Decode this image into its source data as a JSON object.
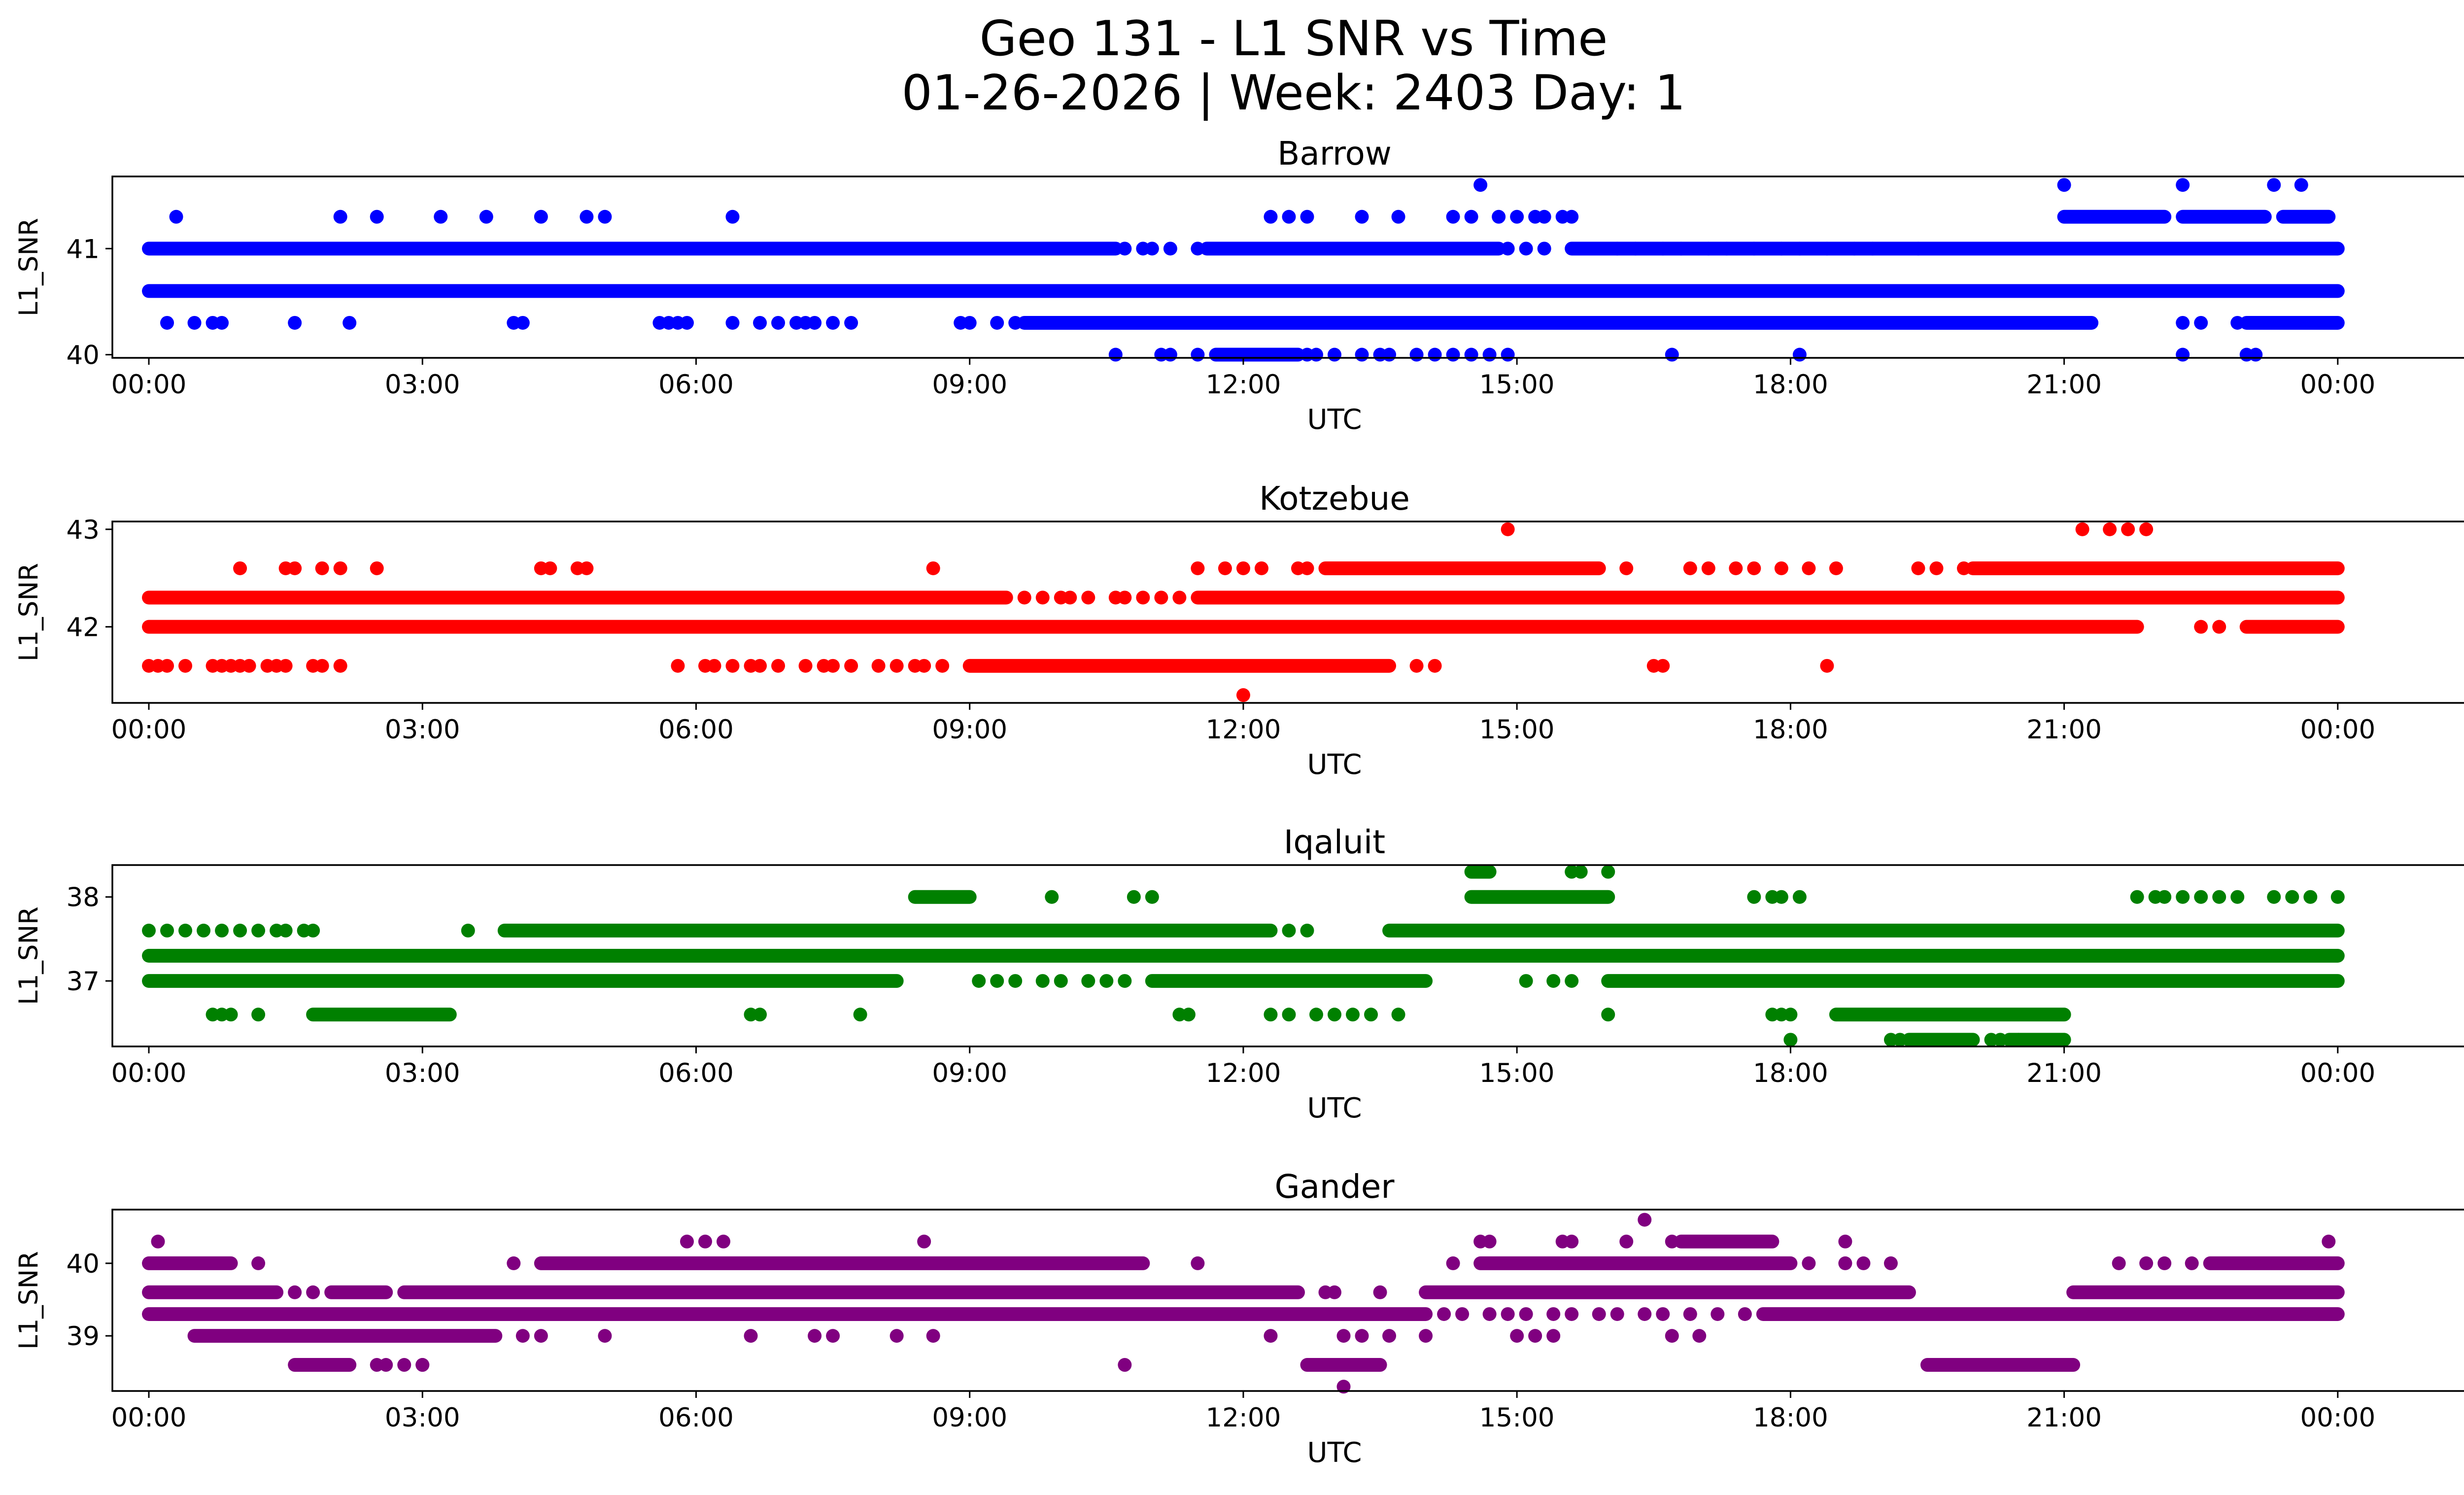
{
  "figure": {
    "title_line1": "Geo 131 - L1 SNR vs Time",
    "title_line2": "01-26-2026 | Week: 2403 Day: 1"
  },
  "chart_data": [
    {
      "type": "scatter",
      "title": "Barrow",
      "xlabel": "UTC",
      "ylabel": "L1_SNR",
      "color": "#0000ff",
      "xlim": [
        -0.4,
        26.4
      ],
      "ylim": [
        39.97,
        41.68
      ],
      "xticks": [
        "00:00",
        "03:00",
        "06:00",
        "09:00",
        "12:00",
        "15:00",
        "18:00",
        "21:00",
        "00:00"
      ],
      "yticks": [
        40,
        41
      ],
      "series": [
        {
          "value": 41.0,
          "segments": [
            [
              0.0,
              10.6
            ],
            [
              11.6,
              14.8
            ],
            [
              15.6,
              24.0
            ]
          ],
          "points": [
            10.7,
            10.9,
            11.0,
            11.2,
            11.5,
            14.9,
            15.1,
            15.3,
            16.1,
            16.3,
            16.6,
            16.8,
            17.1,
            17.3,
            17.6,
            17.9,
            18.1,
            18.4,
            18.7,
            18.9,
            19.4
          ]
        },
        {
          "value": 40.6,
          "segments": [
            [
              0.0,
              24.0
            ]
          ],
          "points": []
        },
        {
          "value": 40.3,
          "segments": [
            [
              9.6,
              21.3
            ],
            [
              23.0,
              24.0
            ]
          ],
          "points": [
            0.2,
            0.5,
            0.7,
            0.8,
            1.6,
            2.2,
            4.0,
            4.1,
            5.6,
            5.7,
            5.8,
            5.9,
            6.4,
            6.7,
            6.9,
            7.1,
            7.2,
            7.3,
            7.5,
            7.7,
            8.9,
            9.0,
            9.3,
            9.5,
            22.3,
            22.5,
            22.9
          ]
        },
        {
          "value": 41.3,
          "segments": [
            [
              21.0,
              22.1
            ],
            [
              22.3,
              23.2
            ],
            [
              23.4,
              23.9
            ]
          ],
          "points": [
            0.3,
            2.1,
            2.5,
            3.2,
            3.7,
            4.3,
            4.8,
            5.0,
            6.4,
            12.3,
            12.5,
            12.7,
            13.3,
            13.7,
            14.3,
            14.5,
            14.8,
            15.0,
            15.2,
            15.3,
            15.5,
            15.6
          ]
        },
        {
          "value": 40.0,
          "segments": [
            [
              11.7,
              12.6
            ]
          ],
          "points": [
            10.6,
            11.1,
            11.2,
            11.5,
            12.7,
            12.8,
            13.0,
            13.3,
            13.5,
            13.6,
            13.9,
            14.1,
            14.3,
            14.5,
            14.7,
            14.9,
            16.7,
            18.1,
            22.3,
            23.0,
            23.1
          ]
        },
        {
          "value": 41.6,
          "segments": [],
          "points": [
            14.6,
            21.0,
            22.3,
            23.3,
            23.6
          ]
        }
      ]
    },
    {
      "type": "scatter",
      "title": "Kotzebue",
      "xlabel": "UTC",
      "ylabel": "L1_SNR",
      "color": "#ff0000",
      "xlim": [
        -0.4,
        26.4
      ],
      "ylim": [
        41.22,
        43.08
      ],
      "xticks": [
        "00:00",
        "03:00",
        "06:00",
        "09:00",
        "12:00",
        "15:00",
        "18:00",
        "21:00",
        "00:00"
      ],
      "yticks": [
        42,
        43
      ],
      "series": [
        {
          "value": 42.0,
          "segments": [
            [
              0.0,
              21.8
            ],
            [
              23.0,
              24.0
            ]
          ],
          "points": [
            22.5,
            22.7
          ]
        },
        {
          "value": 42.3,
          "segments": [
            [
              0.0,
              9.4
            ],
            [
              11.5,
              24.0
            ]
          ],
          "points": [
            9.6,
            9.8,
            10.0,
            10.1,
            10.3,
            10.6,
            10.7,
            10.9,
            11.1,
            11.3
          ]
        },
        {
          "value": 41.6,
          "segments": [
            [
              9.0,
              13.6
            ]
          ],
          "points": [
            0.0,
            0.1,
            0.2,
            0.4,
            0.7,
            0.8,
            0.9,
            1.0,
            1.1,
            1.3,
            1.4,
            1.5,
            1.8,
            1.9,
            2.1,
            5.8,
            6.1,
            6.2,
            6.4,
            6.6,
            6.7,
            6.9,
            7.2,
            7.4,
            7.5,
            7.7,
            8.0,
            8.2,
            8.4,
            8.5,
            8.7,
            13.9,
            14.1,
            16.5,
            16.6,
            18.4
          ]
        },
        {
          "value": 42.6,
          "segments": [
            [
              12.9,
              15.9
            ],
            [
              20.0,
              24.0
            ]
          ],
          "points": [
            1.0,
            1.5,
            1.6,
            1.9,
            2.1,
            2.5,
            4.3,
            4.4,
            4.7,
            4.8,
            8.6,
            11.5,
            11.8,
            12.0,
            12.2,
            12.6,
            12.7,
            16.2,
            16.9,
            17.1,
            17.4,
            17.6,
            17.9,
            18.2,
            18.5,
            19.4,
            19.6,
            19.9
          ]
        },
        {
          "value": 43.0,
          "segments": [],
          "points": [
            14.9,
            21.2,
            21.5,
            21.7,
            21.9
          ]
        },
        {
          "value": 41.3,
          "segments": [],
          "points": [
            12.0
          ]
        }
      ]
    },
    {
      "type": "scatter",
      "title": "Iqaluit",
      "xlabel": "UTC",
      "ylabel": "L1_SNR",
      "color": "#008000",
      "xlim": [
        -0.4,
        26.4
      ],
      "ylim": [
        36.22,
        38.38
      ],
      "xticks": [
        "00:00",
        "03:00",
        "06:00",
        "09:00",
        "12:00",
        "15:00",
        "18:00",
        "21:00",
        "00:00"
      ],
      "yticks": [
        37,
        38
      ],
      "series": [
        {
          "value": 37.3,
          "segments": [
            [
              0.0,
              24.0
            ]
          ],
          "points": []
        },
        {
          "value": 37.6,
          "segments": [
            [
              3.9,
              12.3
            ],
            [
              13.6,
              24.0
            ]
          ],
          "points": [
            0.0,
            0.2,
            0.4,
            0.6,
            0.8,
            1.0,
            1.2,
            1.4,
            1.5,
            1.7,
            1.8,
            3.5,
            12.5,
            12.7
          ]
        },
        {
          "value": 37.0,
          "segments": [
            [
              0.0,
              8.2
            ],
            [
              11.0,
              14.0
            ],
            [
              16.0,
              24.0
            ]
          ],
          "points": [
            9.1,
            9.3,
            9.5,
            9.8,
            10.0,
            10.3,
            10.5,
            10.7,
            15.1,
            15.4,
            15.6
          ]
        },
        {
          "value": 36.6,
          "segments": [
            [
              1.8,
              3.3
            ],
            [
              18.5,
              21.0
            ]
          ],
          "points": [
            0.7,
            0.8,
            0.9,
            1.2,
            6.6,
            6.7,
            7.8,
            11.3,
            11.4,
            12.3,
            12.5,
            12.8,
            13.0,
            13.2,
            13.4,
            13.7,
            16.0,
            17.8,
            17.9,
            18.0
          ]
        },
        {
          "value": 38.0,
          "segments": [
            [
              8.4,
              9.0
            ],
            [
              14.5,
              16.0
            ]
          ],
          "points": [
            9.9,
            10.8,
            11.0,
            17.6,
            17.8,
            17.9,
            18.1,
            21.8,
            22.0,
            22.1,
            22.3,
            22.5,
            22.7,
            22.9,
            23.3,
            23.5,
            23.7,
            24.0
          ]
        },
        {
          "value": 38.3,
          "segments": [
            [
              14.5,
              14.7
            ]
          ],
          "points": [
            15.6,
            15.7,
            16.0
          ]
        },
        {
          "value": 36.3,
          "segments": [
            [
              19.3,
              20.0
            ],
            [
              20.4,
              21.0
            ]
          ],
          "points": [
            18.0,
            19.1,
            19.2,
            20.2,
            20.3,
            20.5
          ]
        }
      ]
    },
    {
      "type": "scatter",
      "title": "Gander",
      "xlabel": "UTC",
      "ylabel": "L1_SNR",
      "color": "#800080",
      "xlim": [
        -0.4,
        26.4
      ],
      "ylim": [
        38.24,
        40.74
      ],
      "xticks": [
        "00:00",
        "03:00",
        "06:00",
        "09:00",
        "12:00",
        "15:00",
        "18:00",
        "21:00",
        "00:00"
      ],
      "yticks": [
        39,
        40
      ],
      "series": [
        {
          "value": 39.6,
          "segments": [
            [
              0.0,
              1.4
            ],
            [
              2.0,
              2.6
            ],
            [
              2.8,
              12.6
            ],
            [
              14.0,
              19.3
            ],
            [
              21.1,
              24.0
            ]
          ],
          "points": [
            1.6,
            1.8,
            12.9,
            13.0,
            13.5
          ]
        },
        {
          "value": 39.3,
          "segments": [
            [
              0.0,
              14.0
            ],
            [
              17.7,
              24.0
            ]
          ],
          "points": [
            14.2,
            14.4,
            14.7,
            14.9,
            15.1,
            15.4,
            15.6,
            15.9,
            16.1,
            16.4,
            16.6,
            16.9,
            17.2,
            17.5
          ]
        },
        {
          "value": 40.0,
          "segments": [
            [
              0.0,
              0.9
            ],
            [
              4.3,
              10.9
            ],
            [
              14.6,
              18.0
            ],
            [
              22.6,
              24.0
            ]
          ],
          "points": [
            1.2,
            4.0,
            11.5,
            14.3,
            18.2,
            18.6,
            18.8,
            19.1,
            21.6,
            21.9,
            22.1,
            22.4
          ]
        },
        {
          "value": 39.0,
          "segments": [
            [
              0.5,
              3.8
            ]
          ],
          "points": [
            4.1,
            4.3,
            5.0,
            6.6,
            7.3,
            7.5,
            8.2,
            8.6,
            12.3,
            13.1,
            13.3,
            13.6,
            14.0,
            15.0,
            15.2,
            15.4,
            16.7,
            17.0
          ]
        },
        {
          "value": 38.6,
          "segments": [
            [
              1.6,
              2.2
            ],
            [
              12.7,
              13.5
            ],
            [
              19.5,
              21.1
            ]
          ],
          "points": [
            2.5,
            2.6,
            2.8,
            3.0,
            3.0,
            10.7
          ]
        },
        {
          "value": 40.3,
          "segments": [
            [
              16.8,
              17.8
            ]
          ],
          "points": [
            0.1,
            5.9,
            6.1,
            6.3,
            8.5,
            14.6,
            14.7,
            15.5,
            15.6,
            16.2,
            16.7,
            18.6,
            23.9
          ]
        },
        {
          "value": 40.6,
          "segments": [],
          "points": [
            16.4
          ]
        },
        {
          "value": 38.3,
          "segments": [],
          "points": [
            13.1
          ]
        }
      ]
    }
  ]
}
